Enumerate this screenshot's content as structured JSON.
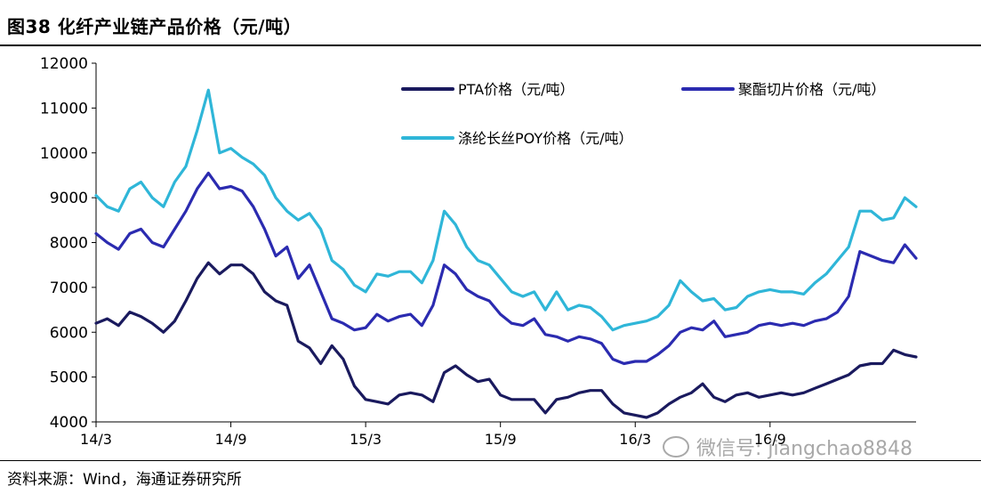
{
  "title": "图38 化纤产业链产品价格（元/吨）",
  "source": "资料来源：Wind，海通证券研究所",
  "watermark": "微信号: jiangchao8848",
  "chart_data": {
    "type": "line",
    "title": "化纤产业链产品价格（元/吨）",
    "xlabel": "",
    "ylabel": "",
    "ylim": [
      4000,
      12000
    ],
    "yticks": [
      4000,
      5000,
      6000,
      7000,
      8000,
      9000,
      10000,
      11000,
      12000
    ],
    "xticks": [
      {
        "label": "14/3",
        "x": 0
      },
      {
        "label": "14/9",
        "x": 6
      },
      {
        "label": "15/3",
        "x": 12
      },
      {
        "label": "15/9",
        "x": 18
      },
      {
        "label": "16/3",
        "x": 24
      },
      {
        "label": "16/9",
        "x": 30
      }
    ],
    "xlim": [
      0,
      36.5
    ],
    "series": [
      {
        "name": "PTA价格（元/吨）",
        "color": "#1a1a5e",
        "x": [
          0,
          0.5,
          1,
          1.5,
          2,
          2.5,
          3,
          3.5,
          4,
          4.5,
          5,
          5.5,
          6,
          6.5,
          7,
          7.5,
          8,
          8.5,
          9,
          9.5,
          10,
          10.5,
          11,
          11.5,
          12,
          12.5,
          13,
          13.5,
          14,
          14.5,
          15,
          15.5,
          16,
          16.5,
          17,
          17.5,
          18,
          18.5,
          19,
          19.5,
          20,
          20.5,
          21,
          21.5,
          22,
          22.5,
          23,
          23.5,
          24,
          24.5,
          25,
          25.5,
          26,
          26.5,
          27,
          27.5,
          28,
          28.5,
          29,
          29.5,
          30,
          30.5,
          31,
          31.5,
          32,
          32.5,
          33,
          33.5,
          34,
          34.5,
          35,
          35.5,
          36,
          36.5
        ],
        "values": [
          6200,
          6300,
          6150,
          6450,
          6350,
          6200,
          6000,
          6250,
          6700,
          7200,
          7550,
          7300,
          7500,
          7500,
          7300,
          6900,
          6700,
          6600,
          5800,
          5650,
          5300,
          5700,
          5400,
          4800,
          4500,
          4450,
          4400,
          4600,
          4650,
          4600,
          4450,
          5100,
          5250,
          5050,
          4900,
          4950,
          4600,
          4500,
          4500,
          4500,
          4200,
          4500,
          4550,
          4650,
          4700,
          4700,
          4400,
          4200,
          4150,
          4100,
          4200,
          4400,
          4550,
          4650,
          4850,
          4550,
          4450,
          4600,
          4650,
          4550,
          4600,
          4650,
          4600,
          4650,
          4750,
          4850,
          4950,
          5050,
          5250,
          5300,
          5300,
          5600,
          5500,
          5450
        ]
      },
      {
        "name": "聚酯切片价格（元/吨）",
        "color": "#2b2bb0",
        "x": [
          0,
          0.5,
          1,
          1.5,
          2,
          2.5,
          3,
          3.5,
          4,
          4.5,
          5,
          5.5,
          6,
          6.5,
          7,
          7.5,
          8,
          8.5,
          9,
          9.5,
          10,
          10.5,
          11,
          11.5,
          12,
          12.5,
          13,
          13.5,
          14,
          14.5,
          15,
          15.5,
          16,
          16.5,
          17,
          17.5,
          18,
          18.5,
          19,
          19.5,
          20,
          20.5,
          21,
          21.5,
          22,
          22.5,
          23,
          23.5,
          24,
          24.5,
          25,
          25.5,
          26,
          26.5,
          27,
          27.5,
          28,
          28.5,
          29,
          29.5,
          30,
          30.5,
          31,
          31.5,
          32,
          32.5,
          33,
          33.5,
          34,
          34.5,
          35,
          35.5,
          36,
          36.5
        ],
        "values": [
          8200,
          8000,
          7850,
          8200,
          8300,
          8000,
          7900,
          8300,
          8700,
          9200,
          9550,
          9200,
          9250,
          9150,
          8800,
          8300,
          7700,
          7900,
          7200,
          7500,
          6900,
          6300,
          6200,
          6050,
          6100,
          6400,
          6250,
          6350,
          6400,
          6150,
          6600,
          7500,
          7300,
          6950,
          6800,
          6700,
          6400,
          6200,
          6150,
          6300,
          5950,
          5900,
          5800,
          5900,
          5850,
          5750,
          5400,
          5300,
          5350,
          5350,
          5500,
          5700,
          6000,
          6100,
          6050,
          6250,
          5900,
          5950,
          6000,
          6150,
          6200,
          6150,
          6200,
          6150,
          6250,
          6300,
          6450,
          6800,
          7800,
          7700,
          7600,
          7550,
          7950,
          7650
        ]
      },
      {
        "name": "涤纶长丝POY价格（元/吨）",
        "color": "#2fb6d8",
        "x": [
          0,
          0.5,
          1,
          1.5,
          2,
          2.5,
          3,
          3.5,
          4,
          4.5,
          5,
          5.5,
          6,
          6.5,
          7,
          7.5,
          8,
          8.5,
          9,
          9.5,
          10,
          10.5,
          11,
          11.5,
          12,
          12.5,
          13,
          13.5,
          14,
          14.5,
          15,
          15.5,
          16,
          16.5,
          17,
          17.5,
          18,
          18.5,
          19,
          19.5,
          20,
          20.5,
          21,
          21.5,
          22,
          22.5,
          23,
          23.5,
          24,
          24.5,
          25,
          25.5,
          26,
          26.5,
          27,
          27.5,
          28,
          28.5,
          29,
          29.5,
          30,
          30.5,
          31,
          31.5,
          32,
          32.5,
          33,
          33.5,
          34,
          34.5,
          35,
          35.5,
          36,
          36.5
        ],
        "values": [
          9050,
          8800,
          8700,
          9200,
          9350,
          9000,
          8800,
          9350,
          9700,
          10500,
          11400,
          10000,
          10100,
          9900,
          9750,
          9500,
          9000,
          8700,
          8500,
          8650,
          8300,
          7600,
          7400,
          7050,
          6900,
          7300,
          7250,
          7350,
          7350,
          7100,
          7600,
          8700,
          8400,
          7900,
          7600,
          7500,
          7200,
          6900,
          6800,
          6900,
          6500,
          6900,
          6500,
          6600,
          6550,
          6350,
          6050,
          6150,
          6200,
          6250,
          6350,
          6600,
          7150,
          6900,
          6700,
          6750,
          6500,
          6550,
          6800,
          6900,
          6950,
          6900,
          6900,
          6850,
          7100,
          7300,
          7600,
          7900,
          8700,
          8700,
          8500,
          8550,
          9000,
          8800
        ]
      }
    ]
  }
}
